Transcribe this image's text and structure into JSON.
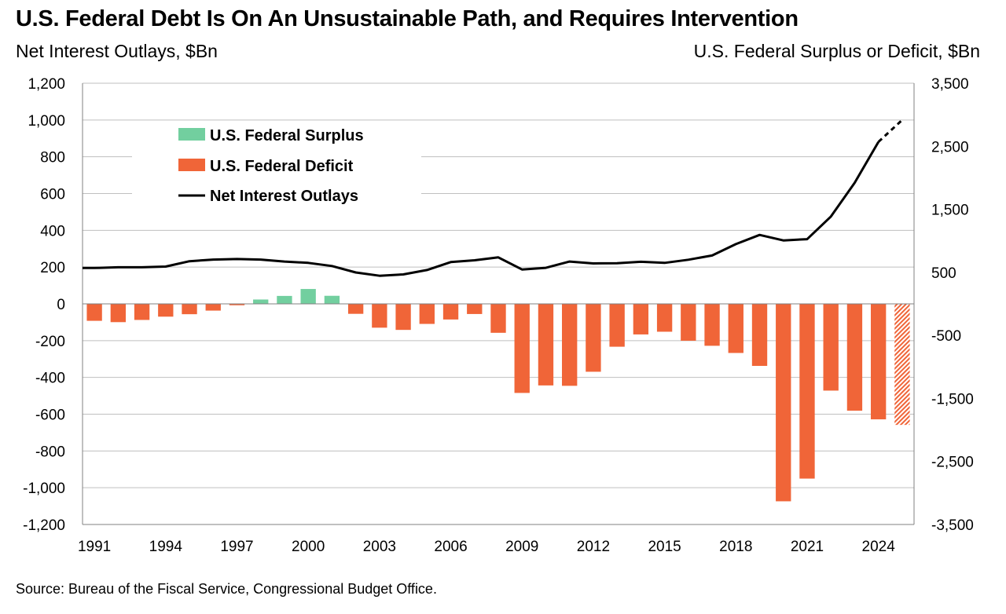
{
  "title": "U.S. Federal Debt Is On An Unsustainable Path, and Requires Intervention",
  "subtitle_left": "Net Interest Outlays, $Bn",
  "subtitle_right": "U.S. Federal Surplus or Deficit, $Bn",
  "source": "Source: Bureau of the Fiscal Service, Congressional Budget Office.",
  "colors": {
    "surplus": "#72CF9F",
    "deficit": "#F06538",
    "interest_line": "#000000",
    "gridline": "#BFBFBF",
    "axis": "#808080"
  },
  "chart_data": {
    "type": "bar",
    "years": [
      1991,
      1992,
      1993,
      1994,
      1995,
      1996,
      1997,
      1998,
      1999,
      2000,
      2001,
      2002,
      2003,
      2004,
      2005,
      2006,
      2007,
      2008,
      2009,
      2010,
      2011,
      2012,
      2013,
      2014,
      2015,
      2016,
      2017,
      2018,
      2019,
      2020,
      2021,
      2022,
      2023,
      2024,
      2025
    ],
    "x_tick_labels": [
      "1991",
      "1994",
      "1997",
      "2000",
      "2003",
      "2006",
      "2009",
      "2012",
      "2015",
      "2018",
      "2021",
      "2024"
    ],
    "left_axis": {
      "title": "Net Interest Outlays, $Bn",
      "ylim": [
        -1200,
        1200
      ],
      "ticks": [
        1200,
        1000,
        800,
        600,
        400,
        200,
        0,
        -200,
        -400,
        -600,
        -800,
        -1000,
        -1200
      ],
      "tick_labels": [
        "1,200",
        "1,000",
        "800",
        "600",
        "400",
        "200",
        "0",
        "-200",
        "-400",
        "-600",
        "-800",
        "-1,000",
        "-1,200"
      ]
    },
    "right_axis": {
      "title": "U.S. Federal Surplus or Deficit, $Bn",
      "ylim": [
        -3500,
        3500
      ],
      "ticks": [
        3500,
        2500,
        1500,
        500,
        -500,
        -1500,
        -2500,
        -3500
      ],
      "tick_labels": [
        "3,500",
        "2,500",
        "1,500",
        "500",
        "-500",
        "-1,500",
        "-2,500",
        "-3,500"
      ]
    },
    "gridlines": true,
    "legend_position": "upper-left",
    "series": [
      {
        "name": "U.S. Federal Surplus",
        "axis": "right",
        "kind": "bar",
        "values": [
          null,
          null,
          null,
          null,
          null,
          null,
          null,
          69,
          126,
          236,
          128,
          null,
          null,
          null,
          null,
          null,
          null,
          null,
          null,
          null,
          null,
          null,
          null,
          null,
          null,
          null,
          null,
          null,
          null,
          null,
          null,
          null,
          null,
          null,
          null
        ]
      },
      {
        "name": "U.S. Federal Deficit",
        "axis": "right",
        "kind": "bar",
        "values": [
          -269,
          -290,
          -255,
          -203,
          -164,
          -107,
          -22,
          null,
          null,
          null,
          null,
          -158,
          -378,
          -413,
          -318,
          -248,
          -161,
          -459,
          -1413,
          -1294,
          -1300,
          -1077,
          -680,
          -485,
          -442,
          -585,
          -665,
          -779,
          -984,
          -3132,
          -2772,
          -1376,
          -1695,
          -1832,
          -1920
        ],
        "projected_from": 2025
      },
      {
        "name": "Net Interest Outlays",
        "axis": "left",
        "kind": "line",
        "values": [
          195,
          199,
          199,
          203,
          232,
          241,
          244,
          241,
          230,
          223,
          206,
          171,
          153,
          160,
          184,
          227,
          237,
          253,
          187,
          196,
          230,
          220,
          221,
          229,
          223,
          240,
          263,
          325,
          375,
          345,
          352,
          475,
          658,
          881,
          1000
        ],
        "projected_from": 2024
      }
    ]
  }
}
